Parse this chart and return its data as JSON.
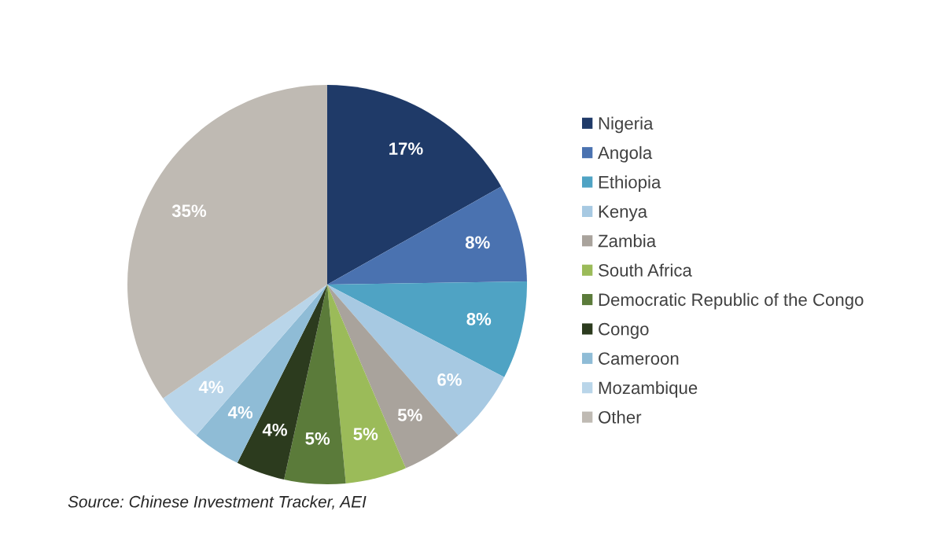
{
  "chart_data": {
    "type": "pie",
    "categories": [
      "Nigeria",
      "Angola",
      "Ethiopia",
      "Kenya",
      "Zambia",
      "South Africa",
      "Democratic Republic of the Congo",
      "Congo",
      "Cameroon",
      "Mozambique",
      "Other"
    ],
    "values": [
      17,
      8,
      8,
      6,
      5,
      5,
      5,
      4,
      4,
      4,
      35
    ],
    "value_labels": [
      "17%",
      "8%",
      "8%",
      "6%",
      "5%",
      "5%",
      "5%",
      "4%",
      "4%",
      "4%",
      "35%"
    ],
    "colors": [
      "#1f3a68",
      "#4a72b0",
      "#4fa3c4",
      "#a7c9e2",
      "#a9a39c",
      "#9bbb59",
      "#5b7b3a",
      "#2c3b1e",
      "#8fbcd6",
      "#b9d5e9",
      "#bfbab3"
    ],
    "legend": "right",
    "annotations": [
      "Source: Chinese Investment Tracker, AEI"
    ]
  }
}
